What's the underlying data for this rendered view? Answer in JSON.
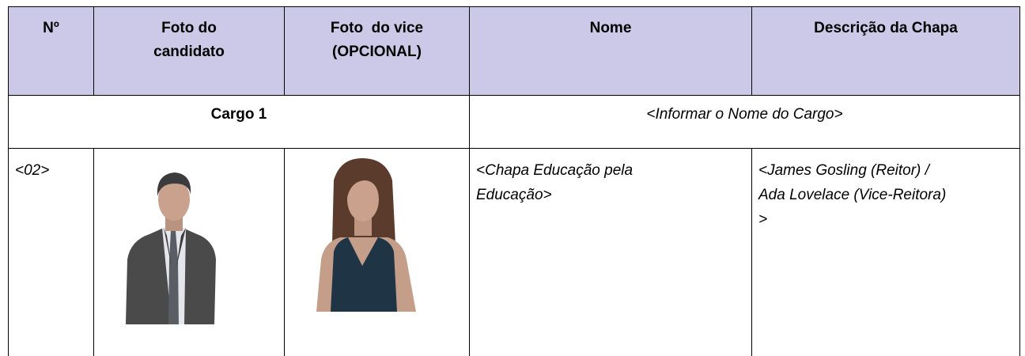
{
  "table": {
    "header": [
      [
        "Nº"
      ],
      [
        "Foto do",
        "candidato"
      ],
      [
        "Foto  do vice",
        "(OPCIONAL)"
      ],
      [
        "Nome"
      ],
      [
        "Descrição da Chapa"
      ]
    ],
    "section": {
      "label": "Cargo 1",
      "value": "<Informar o Nome do Cargo>"
    },
    "rows": [
      {
        "number": "<02>",
        "name": [
          "<Chapa Educação pela",
          "Educação>"
        ],
        "description": [
          "<James Gosling (Reitor) /",
          "Ada Lovelace (Vice-Reitora)",
          ">"
        ]
      }
    ]
  }
}
